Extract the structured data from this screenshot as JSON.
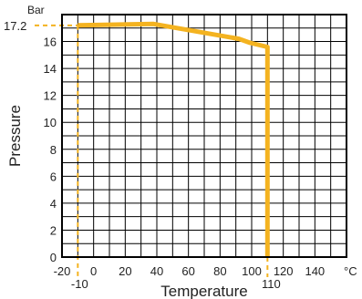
{
  "chart_data": {
    "type": "line",
    "xlabel": "Temperature",
    "ylabel": "Pressure",
    "x_unit": "°C",
    "y_unit": "Bar",
    "xlim": [
      -20,
      160
    ],
    "ylim": [
      0,
      18
    ],
    "x_ticks": [
      "-20",
      "0",
      "20",
      "40",
      "60",
      "80",
      "100",
      "120",
      "140"
    ],
    "y_ticks": [
      "0",
      "2",
      "4",
      "6",
      "8",
      "10",
      "12",
      "14",
      "16"
    ],
    "grid": true,
    "line_color": "#f4b320",
    "series": [
      {
        "x": [
          -10,
          38,
          92,
          99,
          110,
          110
        ],
        "y": [
          17.2,
          17.3,
          16.2,
          15.9,
          15.6,
          0
        ]
      }
    ],
    "reference_marks": {
      "y_value": 17.2,
      "y_label": "17.2",
      "x_low": -10,
      "x_low_label": "-10",
      "x_high": 110,
      "x_high_label": "110"
    }
  }
}
